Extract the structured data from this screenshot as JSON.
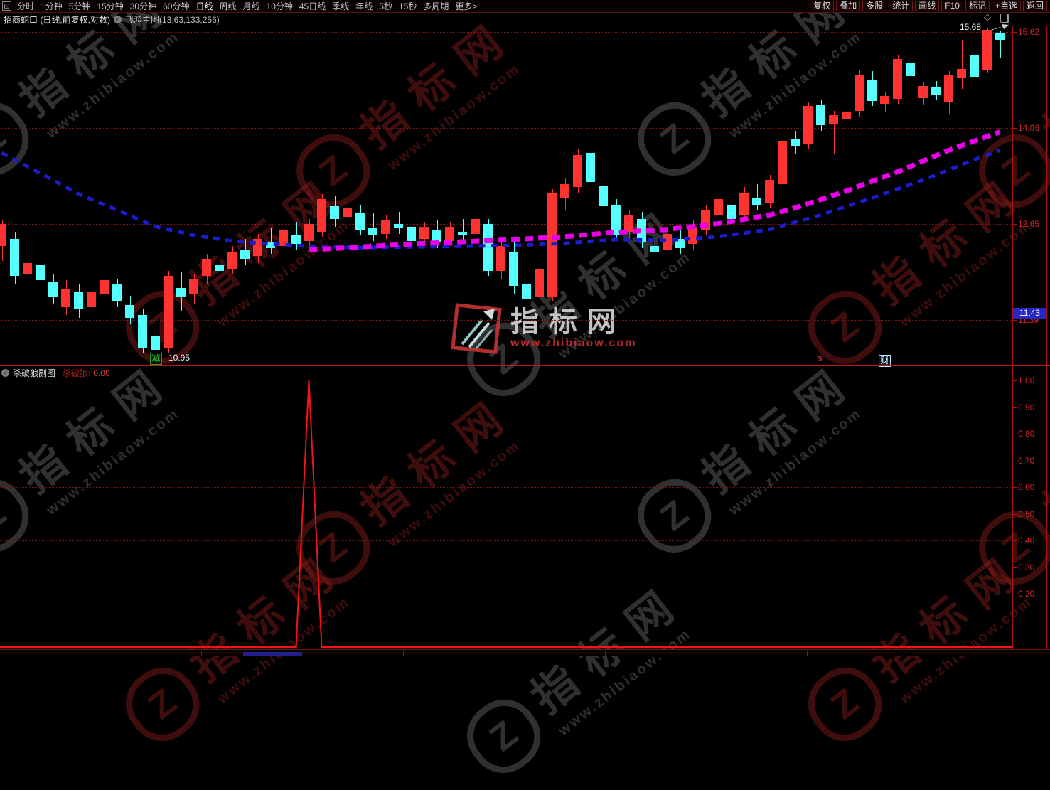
{
  "toolbar": {
    "periods": [
      "分时",
      "1分钟",
      "5分钟",
      "15分钟",
      "30分钟",
      "60分钟",
      "日线",
      "周线",
      "月线",
      "10分钟",
      "45日线",
      "季线",
      "年线",
      "5秒",
      "15秒",
      "多周期",
      "更多>"
    ],
    "active_period": "日线",
    "actions": [
      "复权",
      "叠加",
      "多股",
      "统计",
      "画线",
      "F10",
      "标记",
      "+自选",
      "返回"
    ]
  },
  "title_bar": {
    "stock_label": "招商蛇口 (日线,前复权,对数)",
    "indicator_label": "飞鸿主图(13,63,133,256)"
  },
  "main_chart": {
    "y_axis": [
      {
        "label": "15.62",
        "price": 15.62
      },
      {
        "label": "14.06",
        "price": 14.06
      },
      {
        "label": "12.65",
        "price": 12.65
      },
      {
        "label": "11.39",
        "price": 11.39
      }
    ],
    "price_tag": "11.43",
    "price_tag_value": 11.43,
    "last_price": "15.68",
    "low_badge": "减",
    "low_value": "10.95",
    "s_marker": "S",
    "cai_marker": "财",
    "diamond_icon": "◇"
  },
  "sub_chart": {
    "title": "杀破狼副图",
    "value_name": "杀破狼:",
    "value": "0.00",
    "axis_labels": [
      "1.00",
      "0.90",
      "0.80",
      "0.70",
      "0.60",
      "0.50",
      "0.40",
      "0.30",
      "0.20"
    ],
    "grid_values": [
      0.8,
      0.6,
      0.4,
      0.2
    ]
  },
  "watermark": {
    "letter": "Z",
    "brand": "指标网",
    "url": "www.zhibiaow.com"
  },
  "colors": {
    "up": "#ff3232",
    "down": "#54ffff",
    "ma_fast": "#1c1ccf",
    "ma_slow": "#e800e8",
    "spike": "#f21515",
    "axis_red": "#d02424",
    "grid": "#7d1212",
    "tag_bg": "#2626c4",
    "range_bar": "#20208f"
  },
  "chart_data": [
    {
      "type": "candlestick",
      "title": "飞鸿主图(13,63,133,256)",
      "scale": "log",
      "y_gridlines": [
        15.62,
        14.06,
        12.65,
        11.39
      ],
      "ohlc": [
        [
          12.35,
          12.7,
          12.15,
          12.65
        ],
        [
          12.45,
          12.55,
          11.85,
          11.95
        ],
        [
          11.98,
          12.18,
          11.8,
          12.12
        ],
        [
          12.1,
          12.22,
          11.78,
          11.9
        ],
        [
          11.88,
          11.98,
          11.6,
          11.68
        ],
        [
          11.55,
          11.9,
          11.45,
          11.78
        ],
        [
          11.75,
          11.85,
          11.42,
          11.52
        ],
        [
          11.55,
          11.82,
          11.48,
          11.75
        ],
        [
          11.72,
          11.95,
          11.62,
          11.9
        ],
        [
          11.85,
          11.92,
          11.55,
          11.62
        ],
        [
          11.58,
          11.7,
          11.35,
          11.42
        ],
        [
          11.45,
          11.52,
          10.98,
          11.05
        ],
        [
          11.2,
          11.32,
          10.95,
          11.02
        ],
        [
          11.05,
          12.02,
          10.98,
          11.95
        ],
        [
          11.8,
          12.0,
          11.5,
          11.68
        ],
        [
          11.72,
          11.98,
          11.6,
          11.92
        ],
        [
          11.95,
          12.25,
          11.85,
          12.18
        ],
        [
          12.1,
          12.3,
          11.95,
          12.02
        ],
        [
          12.05,
          12.35,
          11.98,
          12.28
        ],
        [
          12.3,
          12.45,
          12.1,
          12.18
        ],
        [
          12.22,
          12.52,
          12.12,
          12.45
        ],
        [
          12.4,
          12.6,
          12.25,
          12.32
        ],
        [
          12.35,
          12.65,
          12.28,
          12.58
        ],
        [
          12.5,
          12.68,
          12.3,
          12.38
        ],
        [
          12.42,
          12.72,
          12.35,
          12.65
        ],
        [
          12.55,
          13.08,
          12.48,
          13.0
        ],
        [
          12.9,
          13.05,
          12.62,
          12.72
        ],
        [
          12.75,
          12.95,
          12.55,
          12.88
        ],
        [
          12.8,
          12.92,
          12.5,
          12.58
        ],
        [
          12.6,
          12.8,
          12.42,
          12.5
        ],
        [
          12.52,
          12.78,
          12.45,
          12.7
        ],
        [
          12.65,
          12.82,
          12.52,
          12.6
        ],
        [
          12.62,
          12.75,
          12.35,
          12.42
        ],
        [
          12.45,
          12.68,
          12.38,
          12.62
        ],
        [
          12.58,
          12.7,
          12.32,
          12.4
        ],
        [
          12.42,
          12.68,
          12.35,
          12.62
        ],
        [
          12.55,
          12.72,
          12.42,
          12.5
        ],
        [
          12.52,
          12.78,
          12.45,
          12.72
        ],
        [
          12.65,
          12.72,
          11.95,
          12.02
        ],
        [
          12.02,
          12.42,
          11.92,
          12.35
        ],
        [
          12.28,
          12.45,
          11.72,
          11.82
        ],
        [
          11.85,
          12.15,
          11.58,
          11.65
        ],
        [
          11.68,
          12.12,
          11.6,
          12.05
        ],
        [
          11.68,
          13.15,
          11.62,
          13.1
        ],
        [
          13.02,
          13.3,
          12.85,
          13.22
        ],
        [
          13.18,
          13.75,
          13.1,
          13.65
        ],
        [
          13.68,
          13.72,
          13.15,
          13.25
        ],
        [
          13.2,
          13.35,
          12.82,
          12.9
        ],
        [
          12.92,
          13.0,
          12.42,
          12.5
        ],
        [
          12.55,
          12.85,
          12.45,
          12.78
        ],
        [
          12.72,
          12.82,
          12.32,
          12.4
        ],
        [
          12.35,
          12.55,
          12.2,
          12.28
        ],
        [
          12.3,
          12.58,
          12.22,
          12.52
        ],
        [
          12.45,
          12.6,
          12.25,
          12.32
        ],
        [
          12.38,
          12.7,
          12.3,
          12.62
        ],
        [
          12.58,
          12.92,
          12.5,
          12.85
        ],
        [
          12.78,
          13.08,
          12.7,
          13.0
        ],
        [
          12.92,
          13.12,
          12.65,
          12.72
        ],
        [
          12.78,
          13.18,
          12.7,
          13.1
        ],
        [
          13.02,
          13.22,
          12.85,
          12.92
        ],
        [
          12.95,
          13.35,
          12.88,
          13.28
        ],
        [
          13.22,
          13.92,
          13.12,
          13.86
        ],
        [
          13.88,
          14.02,
          13.66,
          13.78
        ],
        [
          13.82,
          14.46,
          13.74,
          14.4
        ],
        [
          14.42,
          14.5,
          14.02,
          14.1
        ],
        [
          14.12,
          14.32,
          13.66,
          14.26
        ],
        [
          14.2,
          14.36,
          14.06,
          14.3
        ],
        [
          14.32,
          14.98,
          14.24,
          14.9
        ],
        [
          14.82,
          14.96,
          14.4,
          14.48
        ],
        [
          14.44,
          14.62,
          14.3,
          14.56
        ],
        [
          14.52,
          15.24,
          14.44,
          15.16
        ],
        [
          15.1,
          15.26,
          14.8,
          14.88
        ],
        [
          14.53,
          14.78,
          14.42,
          14.72
        ],
        [
          14.7,
          14.8,
          14.5,
          14.57
        ],
        [
          14.46,
          14.96,
          14.28,
          14.9
        ],
        [
          14.85,
          15.49,
          14.68,
          15.0
        ],
        [
          15.22,
          15.28,
          14.74,
          14.87
        ],
        [
          14.99,
          15.68,
          14.94,
          15.66
        ],
        [
          15.61,
          15.64,
          15.18,
          15.49
        ]
      ],
      "ma_blue": [
        [
          0,
          13.68
        ],
        [
          3,
          13.38
        ],
        [
          6,
          13.08
        ],
        [
          9,
          12.85
        ],
        [
          12,
          12.62
        ],
        [
          15,
          12.5
        ],
        [
          18,
          12.42
        ],
        [
          21,
          12.38
        ],
        [
          24,
          12.35
        ],
        [
          28,
          12.33
        ],
        [
          32,
          12.34
        ],
        [
          36,
          12.35
        ],
        [
          40,
          12.36
        ],
        [
          44,
          12.39
        ],
        [
          48,
          12.44
        ],
        [
          52,
          12.43
        ],
        [
          56,
          12.48
        ],
        [
          60,
          12.58
        ],
        [
          64,
          12.78
        ],
        [
          68,
          13.02
        ],
        [
          72,
          13.28
        ],
        [
          76,
          13.58
        ],
        [
          78,
          13.72
        ]
      ],
      "ma_magenta": [
        [
          24,
          12.3
        ],
        [
          28,
          12.34
        ],
        [
          32,
          12.38
        ],
        [
          36,
          12.41
        ],
        [
          40,
          12.44
        ],
        [
          44,
          12.48
        ],
        [
          48,
          12.54
        ],
        [
          52,
          12.58
        ],
        [
          56,
          12.66
        ],
        [
          60,
          12.78
        ],
        [
          62,
          12.88
        ],
        [
          64,
          13.0
        ],
        [
          66,
          13.12
        ],
        [
          68,
          13.26
        ],
        [
          70,
          13.4
        ],
        [
          72,
          13.56
        ],
        [
          74,
          13.72
        ],
        [
          76,
          13.86
        ],
        [
          78,
          14.0
        ]
      ]
    },
    {
      "type": "line",
      "title": "杀破狼副图",
      "length": 79,
      "spike_index": 24,
      "spike_value": 1.0,
      "baseline": 0.0,
      "ylim": [
        0,
        1.07
      ],
      "y_gridlines": [
        0.8,
        0.6,
        0.4,
        0.2
      ]
    }
  ]
}
